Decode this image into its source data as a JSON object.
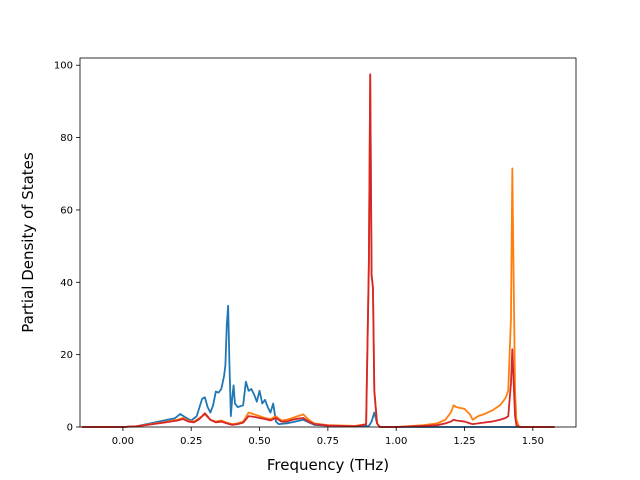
{
  "chart_data": {
    "type": "line",
    "title": "",
    "xlabel": "Frequency (THz)",
    "ylabel": "Partial Density of States",
    "xlim": [
      -0.157,
      1.658
    ],
    "ylim": [
      0,
      102
    ],
    "grid": false,
    "legend": "none",
    "xticks": [
      {
        "value": 0.0,
        "label": "0.00"
      },
      {
        "value": 0.25,
        "label": "0.25"
      },
      {
        "value": 0.5,
        "label": "0.50"
      },
      {
        "value": 0.75,
        "label": "0.75"
      },
      {
        "value": 1.0,
        "label": "1.00"
      },
      {
        "value": 1.25,
        "label": "1.25"
      },
      {
        "value": 1.5,
        "label": "1.50"
      }
    ],
    "yticks": [
      {
        "value": 0,
        "label": "0"
      },
      {
        "value": 20,
        "label": "20"
      },
      {
        "value": 40,
        "label": "40"
      },
      {
        "value": 60,
        "label": "60"
      },
      {
        "value": 80,
        "label": "80"
      },
      {
        "value": 100,
        "label": "100"
      }
    ],
    "series": [
      {
        "color": "#1f77b4",
        "x": [
          -0.15,
          0.0,
          0.05,
          0.1,
          0.15,
          0.19,
          0.21,
          0.23,
          0.25,
          0.27,
          0.29,
          0.3,
          0.31,
          0.32,
          0.33,
          0.34,
          0.35,
          0.36,
          0.37,
          0.375,
          0.38,
          0.385,
          0.39,
          0.395,
          0.4,
          0.405,
          0.41,
          0.42,
          0.44,
          0.45,
          0.46,
          0.47,
          0.48,
          0.49,
          0.5,
          0.51,
          0.52,
          0.53,
          0.54,
          0.55,
          0.56,
          0.57,
          0.6,
          0.63,
          0.66,
          0.7,
          0.75,
          0.8,
          0.85,
          0.9,
          0.91,
          0.92,
          0.93,
          0.94,
          1.0,
          1.1,
          1.2,
          1.25,
          1.3,
          1.35,
          1.4,
          1.42,
          1.43,
          1.44,
          1.45,
          1.5,
          1.58
        ],
        "y": [
          0,
          0,
          0.2,
          1.0,
          1.8,
          2.4,
          3.6,
          2.6,
          1.8,
          3.0,
          7.8,
          8.2,
          5.5,
          4.0,
          6.0,
          9.8,
          9.5,
          10.5,
          14.0,
          17.0,
          28.0,
          33.5,
          17.0,
          3.0,
          8.0,
          11.5,
          6.5,
          5.5,
          6.0,
          12.5,
          10.0,
          10.5,
          9.0,
          7.0,
          10.0,
          6.5,
          7.5,
          5.5,
          4.0,
          6.5,
          1.5,
          0.8,
          1.0,
          1.5,
          2.0,
          0.6,
          0.4,
          0.3,
          0.2,
          0.3,
          1.5,
          4.0,
          1.0,
          0,
          0,
          0,
          0,
          0,
          0,
          0,
          0,
          0,
          0,
          0,
          0,
          0,
          0
        ]
      },
      {
        "color": "#ff7f0e",
        "x": [
          -0.15,
          0.0,
          0.05,
          0.1,
          0.15,
          0.2,
          0.22,
          0.24,
          0.26,
          0.28,
          0.3,
          0.32,
          0.34,
          0.36,
          0.38,
          0.4,
          0.42,
          0.44,
          0.46,
          0.48,
          0.5,
          0.52,
          0.54,
          0.56,
          0.58,
          0.6,
          0.62,
          0.64,
          0.66,
          0.68,
          0.7,
          0.75,
          0.8,
          0.85,
          0.89,
          0.9,
          0.905,
          0.91,
          0.915,
          0.92,
          0.93,
          0.94,
          1.0,
          1.1,
          1.15,
          1.18,
          1.2,
          1.21,
          1.22,
          1.25,
          1.27,
          1.28,
          1.3,
          1.32,
          1.35,
          1.38,
          1.4,
          1.41,
          1.42,
          1.425,
          1.43,
          1.435,
          1.44,
          1.45,
          1.5,
          1.58
        ],
        "y": [
          0,
          0,
          0.2,
          0.8,
          1.3,
          2.0,
          2.5,
          1.7,
          1.5,
          2.5,
          3.5,
          2.0,
          1.5,
          1.8,
          1.2,
          0.8,
          1.0,
          1.5,
          4.0,
          3.5,
          3.0,
          2.5,
          2.2,
          3.0,
          1.8,
          2.0,
          2.5,
          3.0,
          3.5,
          2.0,
          1.0,
          0.5,
          0.4,
          0.3,
          0.8,
          45.0,
          97.0,
          42.0,
          38.5,
          10.0,
          1.0,
          0,
          0,
          0.5,
          1.0,
          2.0,
          4.0,
          6.0,
          5.5,
          5.0,
          3.5,
          2.0,
          3.0,
          3.5,
          4.5,
          6.0,
          8.0,
          10.0,
          30.0,
          71.5,
          40.0,
          10.0,
          2.0,
          0,
          0,
          0
        ]
      },
      {
        "color": "#d62728",
        "x": [
          -0.15,
          0.0,
          0.05,
          0.1,
          0.15,
          0.2,
          0.22,
          0.24,
          0.26,
          0.28,
          0.3,
          0.32,
          0.34,
          0.36,
          0.38,
          0.4,
          0.42,
          0.44,
          0.46,
          0.48,
          0.5,
          0.52,
          0.54,
          0.56,
          0.58,
          0.6,
          0.62,
          0.64,
          0.66,
          0.68,
          0.7,
          0.75,
          0.8,
          0.85,
          0.89,
          0.9,
          0.905,
          0.91,
          0.915,
          0.92,
          0.93,
          0.94,
          1.0,
          1.1,
          1.15,
          1.18,
          1.2,
          1.21,
          1.22,
          1.25,
          1.27,
          1.28,
          1.3,
          1.32,
          1.35,
          1.38,
          1.4,
          1.41,
          1.42,
          1.425,
          1.43,
          1.435,
          1.44,
          1.45,
          1.5,
          1.58
        ],
        "y": [
          0,
          0,
          0.2,
          0.7,
          1.2,
          1.8,
          2.2,
          1.5,
          1.3,
          2.2,
          3.8,
          2.0,
          1.3,
          1.5,
          1.0,
          0.6,
          0.8,
          1.2,
          3.0,
          2.8,
          2.5,
          2.2,
          1.8,
          2.5,
          1.5,
          1.5,
          2.0,
          2.3,
          2.5,
          1.5,
          0.8,
          0.4,
          0.3,
          0.2,
          0.7,
          45.0,
          97.5,
          42.0,
          38.5,
          10.0,
          1.0,
          0,
          0,
          0.3,
          0.5,
          1.0,
          1.5,
          2.0,
          1.8,
          1.5,
          1.0,
          0.8,
          1.0,
          1.2,
          1.5,
          2.0,
          2.5,
          3.0,
          12.0,
          21.5,
          12.0,
          3.0,
          0.5,
          0,
          0,
          0
        ]
      }
    ]
  }
}
